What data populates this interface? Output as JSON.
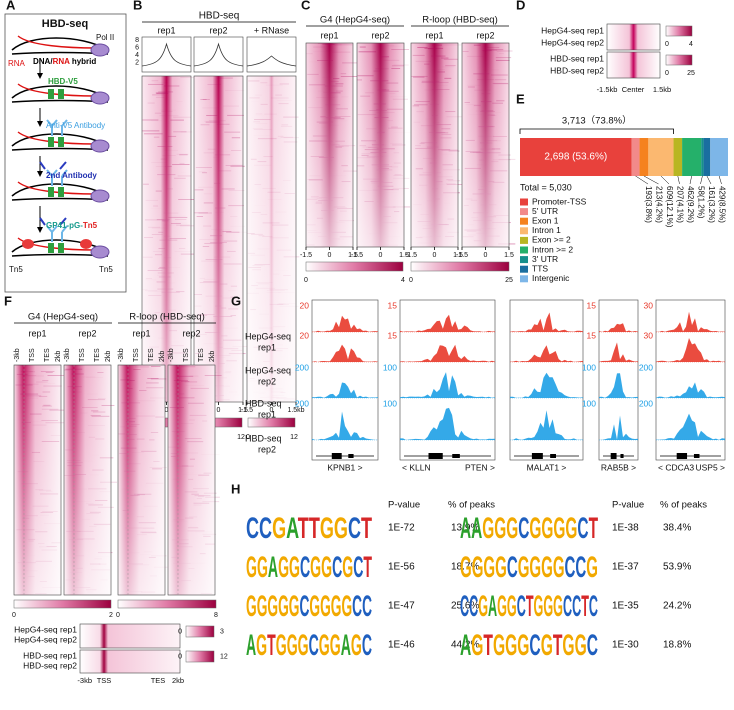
{
  "panel_a": {
    "label": "A",
    "title": "HBD-seq",
    "pol2": "Pol II",
    "rna": "RNA",
    "hybrid": [
      "DNA/",
      "RNA",
      " hybrid"
    ],
    "step1": "HBD-V5",
    "step2": "Anti-V5 Antibody",
    "step3": "2nd Antibody",
    "step4": [
      "GP41-pG-",
      "Tn5"
    ],
    "tn5_left": "Tn5",
    "tn5_right": "Tn5"
  },
  "panel_b": {
    "label": "B",
    "title": "HBD-seq",
    "columns": [
      "rep1",
      "rep2",
      "+ RNase"
    ],
    "profile_yticks": [
      "8",
      "6",
      "4",
      "2"
    ],
    "xticks": [
      [
        "-1.5",
        "0",
        "1.5"
      ],
      [
        "-1.5",
        "0",
        "1.5"
      ],
      [
        "-1.5",
        "0",
        "1.5kb"
      ]
    ],
    "colorbars": [
      [
        "0",
        "12"
      ],
      [
        "0",
        "12"
      ],
      [
        "0",
        "12"
      ]
    ]
  },
  "panel_c": {
    "label": "C",
    "groups": [
      "G4 (HepG4-seq)",
      "R-loop (HBD-seq)"
    ],
    "columns": [
      "rep1",
      "rep2",
      "rep1",
      "rep2"
    ],
    "xticks": [
      [
        "-1.5",
        "0",
        "1.5"
      ],
      [
        "-1.5",
        "0",
        "1.5"
      ],
      [
        "-1.5",
        "0",
        "1.5"
      ],
      [
        "-1.5",
        "0",
        "1.5"
      ]
    ],
    "colorbars": [
      [
        "0",
        "4"
      ],
      [
        "0",
        "25"
      ]
    ]
  },
  "panel_d": {
    "label": "D",
    "rows": [
      "HepG4-seq rep1",
      "HepG4-seq rep2",
      "HBD-seq rep1",
      "HBD-seq rep2"
    ],
    "colorbars": [
      [
        "0",
        "4"
      ],
      [
        "0",
        "25"
      ]
    ],
    "xticks": [
      "-1.5kb",
      "Center",
      "1.5kb"
    ]
  },
  "panel_e": {
    "label": "E",
    "bracket": "3,713（73.8%）",
    "total": "Total = 5,030",
    "segments": [
      {
        "name": "Promoter-TSS",
        "color": "#e8413c",
        "value": 2698,
        "label": "2,698 (53.6%)"
      },
      {
        "name": "5' UTR",
        "color": "#f28a8a",
        "value": 193,
        "label": "193(3.8%)"
      },
      {
        "name": "Exon 1",
        "color": "#f5821f",
        "value": 213,
        "label": "213(4.2%)"
      },
      {
        "name": "Intron 1",
        "color": "#fbb870",
        "value": 609,
        "label": "609(12.1%)"
      },
      {
        "name": "Exon >= 2",
        "color": "#b8b622",
        "value": 207,
        "label": "207(4.1%)"
      },
      {
        "name": "Intron >= 2",
        "color": "#25b06a",
        "value": 462,
        "label": "462(9.2%)"
      },
      {
        "name": "3' UTR",
        "color": "#168f8c",
        "value": 58,
        "label": "58(1.2%)"
      },
      {
        "name": "TTS",
        "color": "#1a6ea0",
        "value": 161,
        "label": "161(3.2%)"
      },
      {
        "name": "Intergenic",
        "color": "#7db6e8",
        "value": 429,
        "label": "429(8.5%)"
      }
    ]
  },
  "panel_f": {
    "label": "F",
    "groups": [
      "G4 (HepG4-seq)",
      "R-loop (HBD-seq)"
    ],
    "columns": [
      "rep1",
      "rep2",
      "rep1",
      "rep2"
    ],
    "xticks": [
      [
        "-3kb",
        "TSS",
        "TES",
        "2kb"
      ],
      [
        "-3kb",
        "TSS",
        "TES",
        "2kb"
      ],
      [
        "-3kb",
        "TSS",
        "TES",
        "2kb"
      ],
      [
        "-3kb",
        "TSS",
        "TES",
        "2kb"
      ]
    ],
    "colorbars": [
      [
        "0",
        "2"
      ],
      [
        "0",
        "8"
      ]
    ],
    "summary_rows": [
      "HepG4-seq rep1",
      "HepG4-seq rep2",
      "HBD-seq rep1",
      "HBD-seq rep2"
    ],
    "summary_colorbars": [
      [
        "0",
        "3"
      ],
      [
        "0",
        "12"
      ]
    ],
    "summary_xticks": [
      "-3kb",
      "TSS",
      "TES",
      "2kb"
    ]
  },
  "panel_g": {
    "label": "G",
    "rows": [
      [
        "HepG4-seq",
        "rep1"
      ],
      [
        "HepG4-seq",
        "rep2"
      ],
      [
        "HBD-seq",
        "rep1"
      ],
      [
        "HBD-seq",
        "rep2"
      ]
    ],
    "tracks": [
      {
        "scales": [
          "20",
          "20",
          "200",
          "200"
        ],
        "genes": [
          "KPNB1 >"
        ]
      },
      {
        "scales": [
          "15",
          "15",
          "100",
          "100"
        ],
        "genes": [
          "< KLLN",
          "PTEN >"
        ]
      },
      {
        "scales": [],
        "genes": [
          "MALAT1 >"
        ]
      },
      {
        "scales": [
          "15",
          "15",
          "100",
          "100"
        ],
        "genes": [
          "RAB5B >"
        ]
      },
      {
        "scales": [
          "30",
          "30",
          "200",
          "200"
        ],
        "genes": [
          "< CDCA3",
          "USP5 >"
        ]
      }
    ]
  },
  "panel_h": {
    "label": "H",
    "tables": [
      {
        "headers": [
          "P-value",
          "% of peaks"
        ],
        "rows": [
          {
            "motif": "CCGATTGGCT",
            "p": "1E-72",
            "pct": "13.9%"
          },
          {
            "motif": "GGAGGCGGCGCT",
            "p": "1E-56",
            "pct": "18.7%"
          },
          {
            "motif": "GGGGGCGGGGCC",
            "p": "1E-47",
            "pct": "25.6%"
          },
          {
            "motif": "AGTGGGCGGAGC",
            "p": "1E-46",
            "pct": "44.2%"
          }
        ]
      },
      {
        "headers": [
          "P-value",
          "% of peaks"
        ],
        "rows": [
          {
            "motif": "AAGGGCGGGGCT",
            "p": "1E-38",
            "pct": "38.4%"
          },
          {
            "motif": "GGGGCGGGGCCG",
            "p": "1E-37",
            "pct": "53.9%"
          },
          {
            "motif": "CCGAGGCTGGGCCTC",
            "p": "1E-35",
            "pct": "24.2%"
          },
          {
            "motif": "AGTGGGCGTGGC",
            "p": "1E-30",
            "pct": "18.8%"
          }
        ]
      }
    ]
  }
}
